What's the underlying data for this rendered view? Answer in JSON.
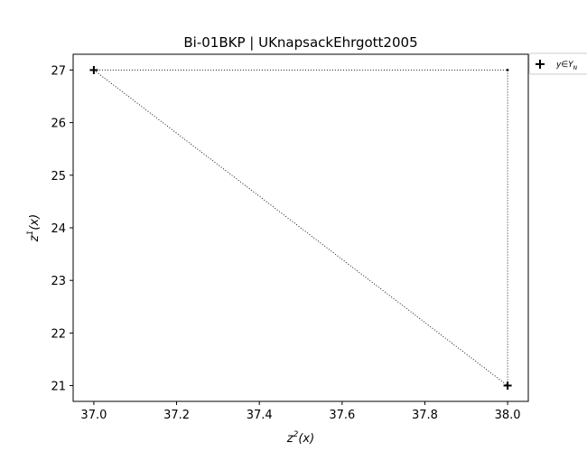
{
  "chart_data": {
    "type": "scatter",
    "title": "Bi-01BKP | UKnapsackEhrgott2005",
    "xlabel": {
      "base": "z",
      "sup": "2",
      "rest": "(x)"
    },
    "ylabel": {
      "base": "z",
      "sup": "1",
      "rest": "(x)"
    },
    "xlim": [
      36.95,
      38.05
    ],
    "ylim": [
      20.7,
      27.3
    ],
    "xticks": [
      37.0,
      37.2,
      37.4,
      37.6,
      37.8,
      38.0
    ],
    "xtick_labels": [
      "37.0",
      "37.2",
      "37.4",
      "37.6",
      "37.8",
      "38.0"
    ],
    "yticks": [
      21,
      22,
      23,
      24,
      25,
      26,
      27
    ],
    "ytick_labels": [
      "21",
      "22",
      "23",
      "24",
      "25",
      "26",
      "27"
    ],
    "grid": false,
    "legend": {
      "placement": "outside-top-right",
      "entries": [
        {
          "label_base": "y",
          "label_rel": "∈",
          "label_set": "Y",
          "label_sub": "N",
          "marker": "+"
        }
      ]
    },
    "series": [
      {
        "name": "y ∈ Y_N",
        "marker": "+",
        "color": "#000000",
        "points": [
          {
            "x": 37.0,
            "y": 27
          },
          {
            "x": 38.0,
            "y": 21
          }
        ]
      }
    ],
    "dotted_lines": [
      {
        "from": {
          "x": 37.0,
          "y": 27
        },
        "to": {
          "x": 38.0,
          "y": 21
        }
      },
      {
        "from": {
          "x": 37.0,
          "y": 27
        },
        "to": {
          "x": 38.0,
          "y": 27
        }
      },
      {
        "from": {
          "x": 38.0,
          "y": 27
        },
        "to": {
          "x": 38.0,
          "y": 21
        }
      }
    ],
    "nadir_point": {
      "x": 38.0,
      "y": 27
    }
  }
}
